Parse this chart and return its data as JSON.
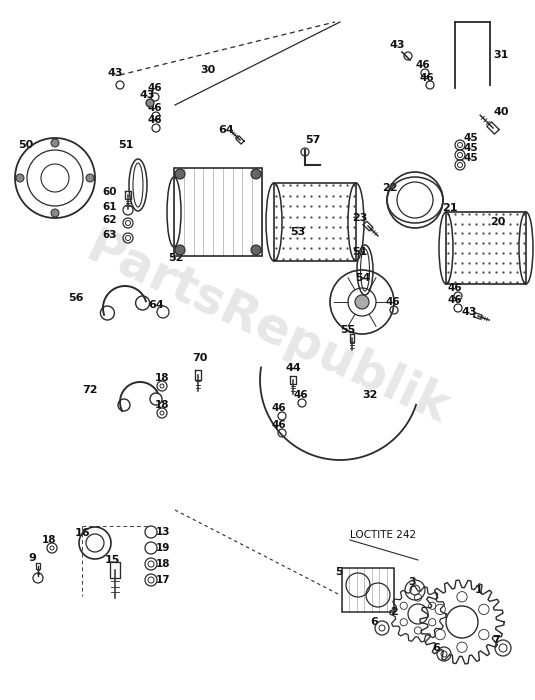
{
  "bg_color": "#ffffff",
  "watermark": "PartsRepublik",
  "watermark_color": "#bbbbbb",
  "watermark_alpha": 0.35,
  "fig_w": 5.35,
  "fig_h": 7.0,
  "dpi": 100
}
